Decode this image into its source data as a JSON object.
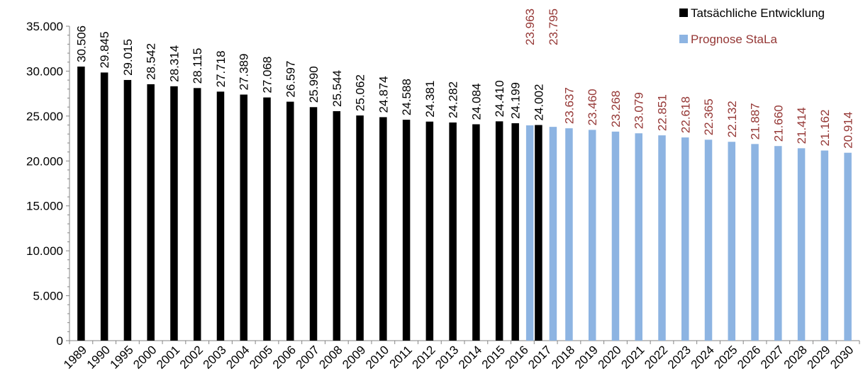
{
  "chart_data": {
    "type": "bar",
    "categories": [
      "1989",
      "1990",
      "1995",
      "2000",
      "2001",
      "2002",
      "2003",
      "2004",
      "2005",
      "2006",
      "2007",
      "2008",
      "2009",
      "2010",
      "2011",
      "2012",
      "2013",
      "2014",
      "2015",
      "2016",
      "2017",
      "2018",
      "2019",
      "2020",
      "2021",
      "2022",
      "2023",
      "2024",
      "2025",
      "2026",
      "2027",
      "2028",
      "2029",
      "2030"
    ],
    "series": [
      {
        "name": "Tatsächliche Entwicklung",
        "color": "#000000",
        "label_color": "#000000",
        "values": [
          30506,
          29845,
          29015,
          28542,
          28314,
          28115,
          27718,
          27389,
          27068,
          26597,
          25990,
          25544,
          25062,
          24874,
          24588,
          24381,
          24282,
          24084,
          24410,
          24199,
          24002,
          null,
          null,
          null,
          null,
          null,
          null,
          null,
          null,
          null,
          null,
          null,
          null,
          null
        ],
        "labels": [
          "30.506",
          "29.845",
          "29.015",
          "28.542",
          "28.314",
          "28.115",
          "27.718",
          "27.389",
          "27.068",
          "26.597",
          "25.990",
          "25.544",
          "25.062",
          "24.874",
          "24.588",
          "24.381",
          "24.282",
          "24.084",
          "24.410",
          "24.199",
          "24.002",
          null,
          null,
          null,
          null,
          null,
          null,
          null,
          null,
          null,
          null,
          null,
          null,
          null
        ]
      },
      {
        "name": "Prognose StaLa",
        "color": "#8DB4E2",
        "label_color": "#953735",
        "values": [
          null,
          null,
          null,
          null,
          null,
          null,
          null,
          null,
          null,
          null,
          null,
          null,
          null,
          null,
          null,
          null,
          null,
          null,
          null,
          23963,
          23795,
          23637,
          23460,
          23268,
          23079,
          22851,
          22618,
          22365,
          22132,
          21887,
          21660,
          21414,
          21162,
          20914
        ],
        "labels": [
          null,
          null,
          null,
          null,
          null,
          null,
          null,
          null,
          null,
          null,
          null,
          null,
          null,
          null,
          null,
          null,
          null,
          null,
          null,
          "23.963",
          "23.795",
          "23.637",
          "23.460",
          "23.268",
          "23.079",
          "22.851",
          "22.618",
          "22.365",
          "22.132",
          "21.887",
          "21.660",
          "21.414",
          "21.162",
          "20.914"
        ]
      }
    ],
    "yticks": [
      "0",
      "5.000",
      "10.000",
      "15.000",
      "20.000",
      "25.000",
      "30.000",
      "35.000"
    ],
    "ylim": [
      0,
      35000
    ],
    "ytick_step": 5000,
    "legend_position": "top-right",
    "grid": false
  }
}
